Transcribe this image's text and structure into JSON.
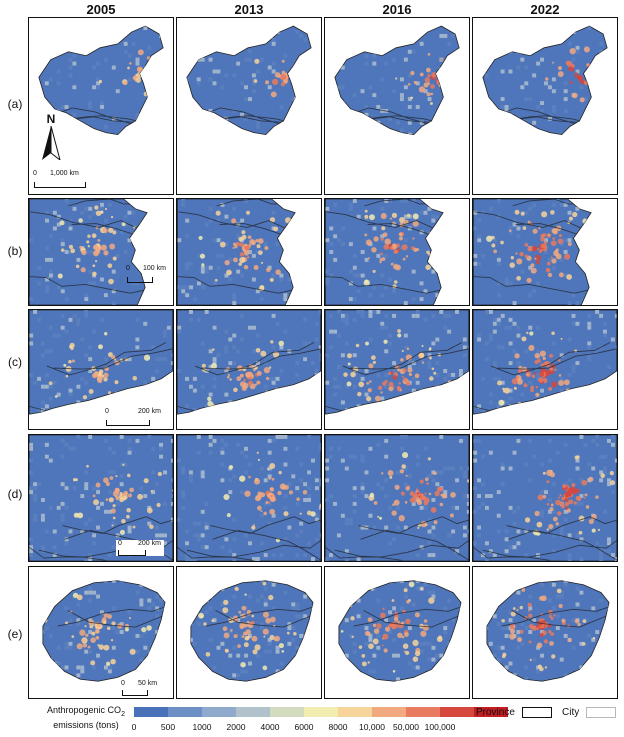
{
  "years": [
    "2005",
    "2013",
    "2016",
    "2022"
  ],
  "row_labels": [
    "(a)",
    "(b)",
    "(c)",
    "(d)",
    "(e)"
  ],
  "north_label": "N",
  "scale_bars": {
    "a": "1,000 km",
    "b": "100 km",
    "c": "200 km",
    "d": "200 km",
    "e": "50 km"
  },
  "scale_zero": "0",
  "legend": {
    "title_line1": "Anthropogenic CO",
    "title_sub": "2",
    "title_line2": "emissions (tons)",
    "classes": [
      {
        "color": "#4a72b8"
      },
      {
        "color": "#6d8fc4"
      },
      {
        "color": "#8fa9cc"
      },
      {
        "color": "#b2c2ca"
      },
      {
        "color": "#d4dcc0"
      },
      {
        "color": "#f3ecb0"
      },
      {
        "color": "#f7d49a"
      },
      {
        "color": "#f1a980"
      },
      {
        "color": "#e77a5f"
      },
      {
        "color": "#d6473e"
      },
      {
        "color": "#c21d23"
      }
    ],
    "tick_labels": [
      "0",
      "500",
      "1000",
      "2000",
      "4000",
      "6000",
      "8000",
      "10,000",
      "50,000",
      "100,000"
    ],
    "boundary_keys": [
      {
        "label": "Province",
        "border_color": "#111111"
      },
      {
        "label": "City",
        "border_color": "#b8b8b8"
      }
    ]
  }
}
